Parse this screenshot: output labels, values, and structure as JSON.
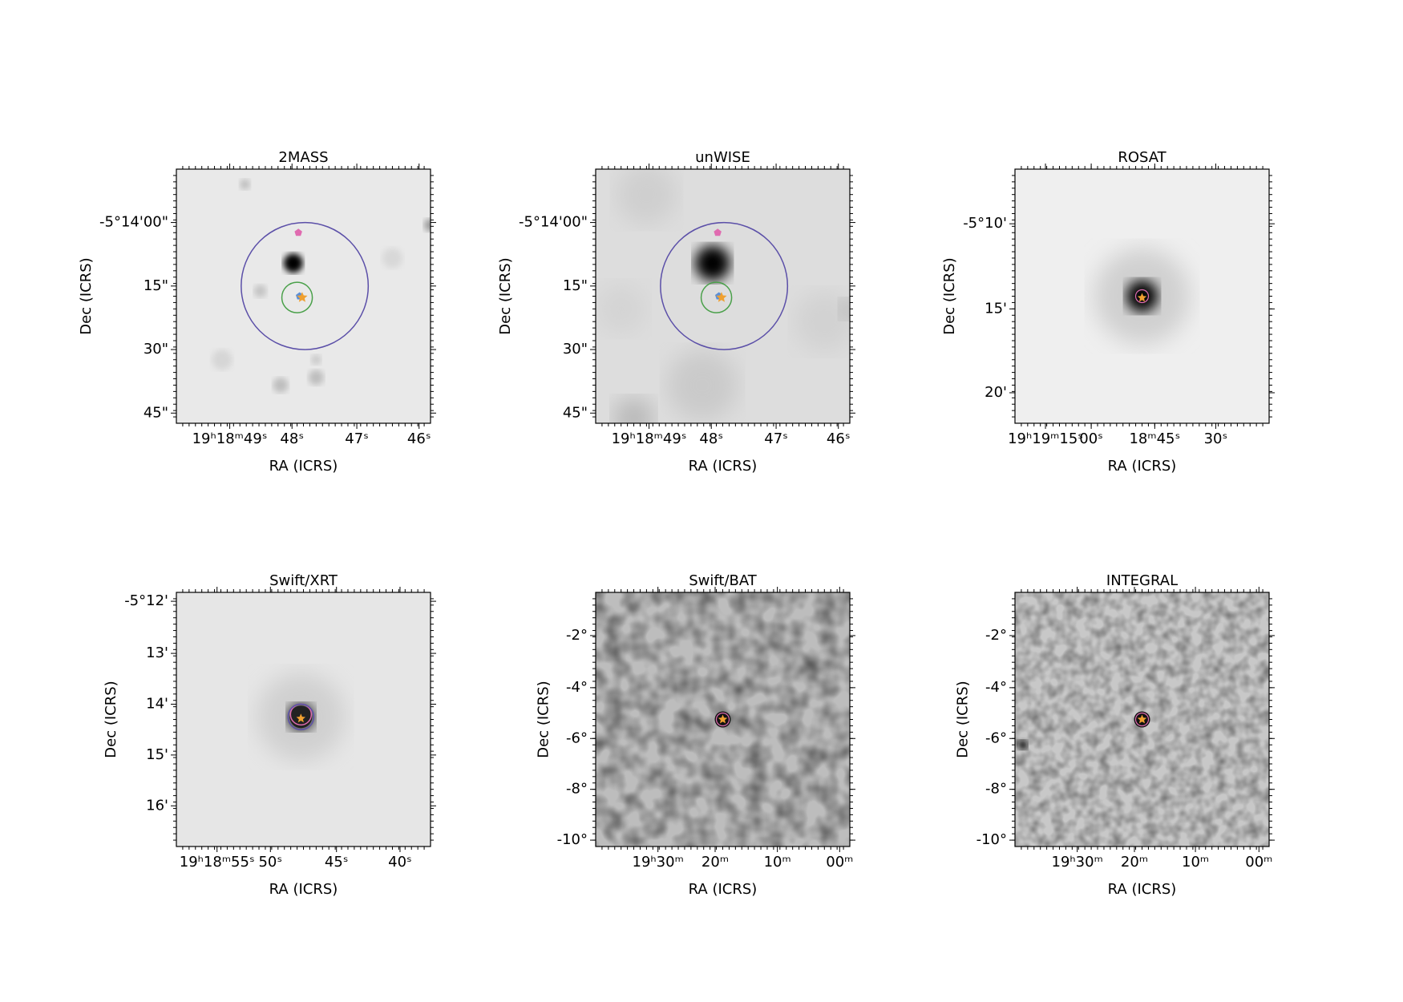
{
  "panels": [
    {
      "title": "2MASS",
      "xlabel": "RA (ICRS)",
      "ylabel": "Dec (ICRS)",
      "xticks": [
        "19ʰ18ᵐ49ˢ",
        "48ˢ",
        "47ˢ",
        "46ˢ"
      ],
      "yticks": [
        "-5°14'00\"",
        "15\"",
        "30\"",
        "45\""
      ]
    },
    {
      "title": "unWISE",
      "xlabel": "RA (ICRS)",
      "ylabel": "Dec (ICRS)",
      "xticks": [
        "19ʰ18ᵐ49ˢ",
        "48ˢ",
        "47ˢ",
        "46ˢ"
      ],
      "yticks": [
        "-5°14'00\"",
        "15\"",
        "30\"",
        "45\""
      ]
    },
    {
      "title": "ROSAT",
      "xlabel": "RA (ICRS)",
      "ylabel": "Dec (ICRS)",
      "xticks": [
        "19ʰ19ᵐ15ˢ",
        "00ˢ",
        "18ᵐ45ˢ",
        "30ˢ"
      ],
      "yticks": [
        "-5°10'",
        "15'",
        "20'"
      ]
    },
    {
      "title": "Swift/XRT",
      "xlabel": "RA (ICRS)",
      "ylabel": "Dec (ICRS)",
      "xticks": [
        "19ʰ18ᵐ55ˢ",
        "50ˢ",
        "45ˢ",
        "40ˢ"
      ],
      "yticks": [
        "-5°12'",
        "13'",
        "14'",
        "15'",
        "16'"
      ]
    },
    {
      "title": "Swift/BAT",
      "xlabel": "RA (ICRS)",
      "ylabel": "Dec (ICRS)",
      "xticks": [
        "19ʰ30ᵐ",
        "20ᵐ",
        "10ᵐ",
        "00ᵐ"
      ],
      "yticks": [
        "-2°",
        "-4°",
        "-6°",
        "-8°",
        "-10°"
      ]
    },
    {
      "title": "INTEGRAL",
      "xlabel": "RA (ICRS)",
      "ylabel": "Dec (ICRS)",
      "xticks": [
        "19ʰ30ᵐ",
        "20ᵐ",
        "10ᵐ",
        "00ᵐ"
      ],
      "yticks": [
        "-2°",
        "-4°",
        "-6°",
        "-8°",
        "-10°"
      ]
    }
  ]
}
